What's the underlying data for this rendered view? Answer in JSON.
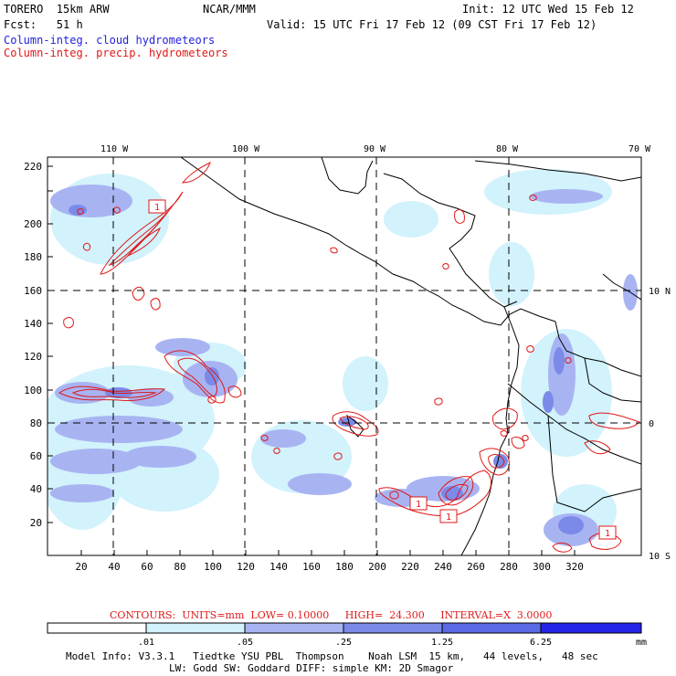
{
  "header": {
    "model": "TORERO  15km ARW",
    "org": "NCAR/MMM",
    "init": "Init: 12 UTC Wed 15 Feb 12",
    "fcst": "Fcst:   51 h",
    "valid": "Valid: 15 UTC Fri 17 Feb 12 (09 CST Fri 17 Feb 12)",
    "legend_cloud": "Column-integ. cloud hydrometeors",
    "legend_precip": "Column-integ. precip. hydrometeors"
  },
  "map": {
    "lon_labels": [
      "110 W",
      "100 W",
      "90 W",
      "80 W",
      "70 W"
    ],
    "lat_labels": [
      "10 N",
      "0",
      "10 S"
    ],
    "x_ticks": [
      "20",
      "40",
      "60",
      "80",
      "100",
      "120",
      "140",
      "160",
      "180",
      "200",
      "220",
      "240",
      "260",
      "280",
      "300",
      "320"
    ],
    "y_ticks": [
      "20",
      "40",
      "60",
      "80",
      "100",
      "120",
      "140",
      "160",
      "180",
      "200",
      "220"
    ],
    "box_labels": [
      "1",
      "1",
      "1",
      "1"
    ],
    "colors": {
      "light": "#d2f2fc",
      "mid": "#a8b4f2",
      "dark": "#7b8ae8",
      "precip": "#e01818",
      "coast": "#000000"
    }
  },
  "contour_info": {
    "text": "CONTOURS:  UNITS=mm  LOW= 0.10000     HIGH=  24.300     INTERVAL=X  3.0000"
  },
  "colorbar": {
    "ticks": [
      ".01",
      ".05",
      ".25",
      "1.25",
      "6.25"
    ],
    "unit": "mm",
    "colors": [
      "#ffffff",
      "#d2f2fc",
      "#a8b4f2",
      "#7b8ae8",
      "#5a6ae4",
      "#2424e6"
    ]
  },
  "footer": {
    "line1": "Model Info: V3.3.1   Tiedtke YSU PBL  Thompson    Noah LSM  15 km,   44 levels,   48 sec",
    "line2": "LW: Godd SW: Goddard DIFF: simple KM: 2D Smagor"
  }
}
